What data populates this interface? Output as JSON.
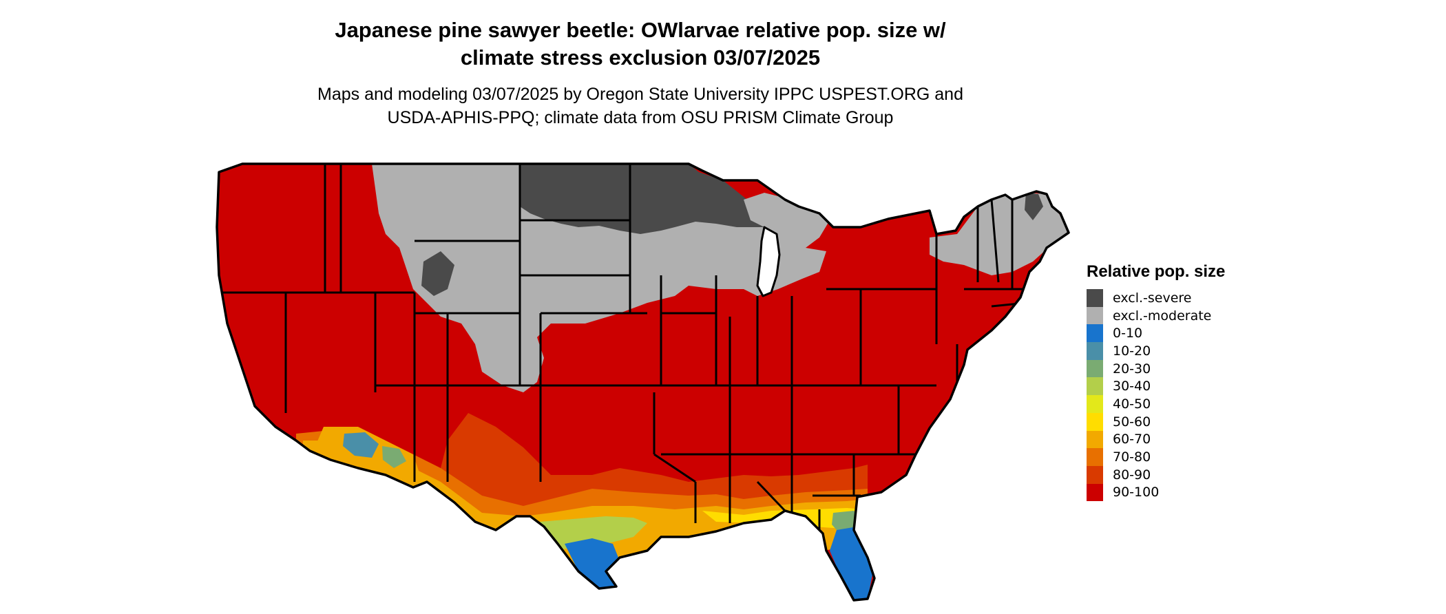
{
  "title": {
    "line1": "Japanese pine sawyer beetle: OWlarvae relative pop. size w/",
    "line2": "climate stress exclusion 03/07/2025"
  },
  "subtitle": {
    "line1": "Maps and modeling 03/07/2025 by Oregon State University IPPC USPEST.ORG and",
    "line2": "USDA-APHIS-PPQ; climate data from OSU PRISM Climate Group"
  },
  "legend": {
    "title": "Relative pop. size",
    "items": [
      {
        "label": "excl.-severe",
        "color": "#4a4a4a"
      },
      {
        "label": "excl.-moderate",
        "color": "#b0b0b0"
      },
      {
        "label": "0-10",
        "color": "#1874cd"
      },
      {
        "label": "10-20",
        "color": "#4a8fa8"
      },
      {
        "label": "20-30",
        "color": "#7aab72"
      },
      {
        "label": "30-40",
        "color": "#b3cf4a"
      },
      {
        "label": "40-50",
        "color": "#e3e81a"
      },
      {
        "label": "50-60",
        "color": "#ffdd00"
      },
      {
        "label": "60-70",
        "color": "#f2a900"
      },
      {
        "label": "70-80",
        "color": "#e87000"
      },
      {
        "label": "80-90",
        "color": "#d93a00"
      },
      {
        "label": "90-100",
        "color": "#cc0000"
      }
    ]
  }
}
